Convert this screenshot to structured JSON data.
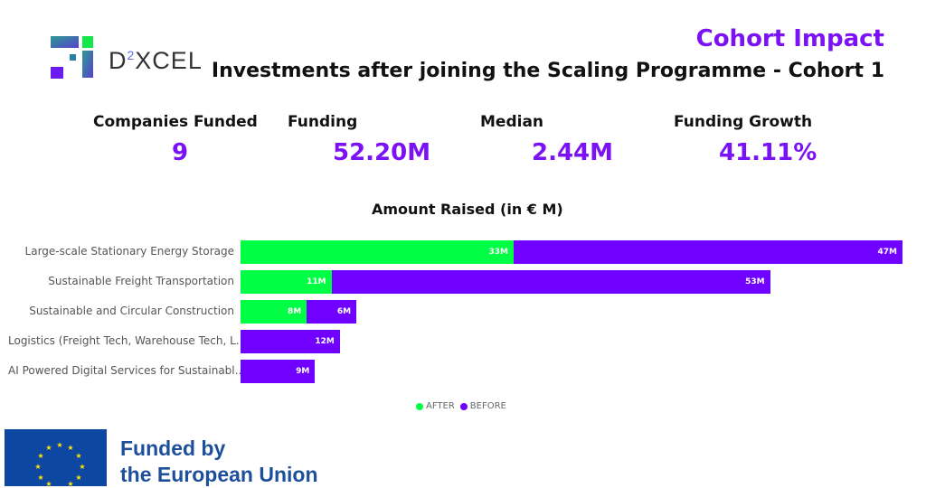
{
  "header": {
    "logo_text": "D",
    "logo_sup": "2",
    "logo_text_rest": "XCEL",
    "title": "Cohort Impact",
    "subtitle": "Investments after joining the Scaling Programme - Cohort 1"
  },
  "kpis": [
    {
      "label": "Companies Funded",
      "value": "9"
    },
    {
      "label": "Funding",
      "value": "52.20M"
    },
    {
      "label": "Median",
      "value": "2.44M"
    },
    {
      "label": "Funding Growth",
      "value": "41.11%"
    }
  ],
  "chart_data": {
    "type": "bar",
    "orientation": "horizontal",
    "stacked": true,
    "title": "Amount Raised (in € M)",
    "categories": [
      "Large-scale Stationary Energy Storage",
      "Sustainable Freight Transportation",
      "Sustainable and Circular Construction",
      "Logistics (Freight Tech, Warehouse Tech, L...",
      "AI Powered Digital Services for Sustainabl..."
    ],
    "series": [
      {
        "name": "AFTER",
        "color": "#00ff44",
        "values": [
          33,
          11,
          8,
          null,
          null
        ],
        "labels": [
          "33M",
          "11M",
          "8M",
          "",
          ""
        ]
      },
      {
        "name": "BEFORE",
        "color": "#7000ff",
        "values": [
          47,
          53,
          6,
          12,
          9
        ],
        "labels": [
          "47M",
          "53M",
          "6M",
          "12M",
          "9M"
        ]
      }
    ],
    "legend": "bottom-center"
  },
  "footer": {
    "eu_line1": "Funded by",
    "eu_line2": "the European Union"
  }
}
